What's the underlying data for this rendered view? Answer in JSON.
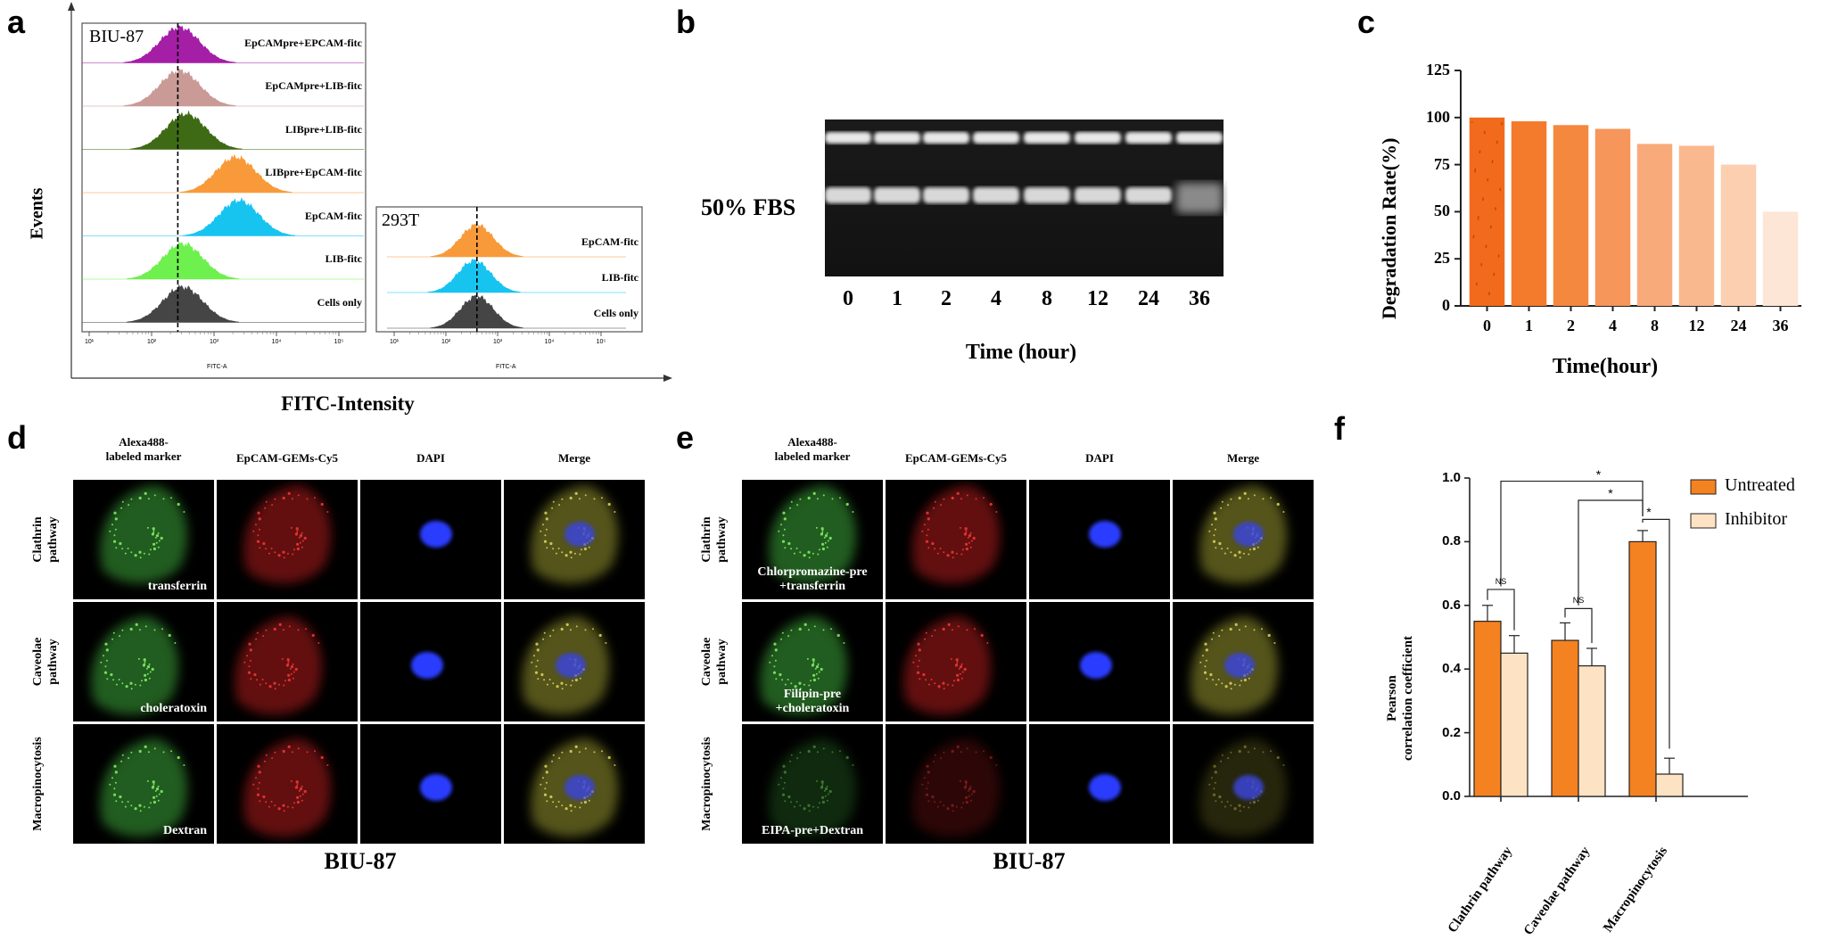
{
  "panels": {
    "a": "a",
    "b": "b",
    "c": "c",
    "d": "d",
    "e": "e",
    "f": "f"
  },
  "panel_a": {
    "y_axis_label": "Events",
    "x_axis_label": "FITC-Intensity",
    "left_sample": "BIU-87",
    "right_sample": "293T",
    "tick_labels": [
      "10¹",
      "10²",
      "10³",
      "10⁴",
      "10⁵"
    ],
    "sub_axis_label": "FITC-A",
    "left_rows": [
      {
        "label": "EpCAMpre+EPCAM-fitc",
        "color": "#a41ea6"
      },
      {
        "label": "EpCAMpre+LIB-fitc",
        "color": "#c99a96"
      },
      {
        "label": "LIBpre+LIB-fitc",
        "color": "#3f6a15"
      },
      {
        "label": "LIBpre+EpCAM-fitc",
        "color": "#f89a3a"
      },
      {
        "label": "EpCAM-fitc",
        "color": "#17c4f0"
      },
      {
        "label": "LIB-fitc",
        "color": "#6ef04f"
      },
      {
        "label": "Cells only",
        "color": "#454545"
      }
    ],
    "right_rows": [
      {
        "label": "EpCAM-fitc",
        "color": "#f89a3a"
      },
      {
        "label": "LIB-fitc",
        "color": "#17c4f0"
      },
      {
        "label": "Cells only",
        "color": "#454545"
      }
    ]
  },
  "panel_b": {
    "row_label": "50% FBS",
    "lanes": [
      "0",
      "1",
      "2",
      "4",
      "8",
      "12",
      "24",
      "36"
    ],
    "x_axis_label": "Time (hour)"
  },
  "panel_c": {
    "chart_data": {
      "type": "bar",
      "categories": [
        "0",
        "1",
        "2",
        "4",
        "8",
        "12",
        "24",
        "36"
      ],
      "values": [
        100,
        98,
        96,
        94,
        86,
        85,
        75,
        50
      ],
      "colors": [
        "#f26a1b",
        "#f47a2c",
        "#f5883f",
        "#f6965a",
        "#f8aa7a",
        "#f9b88d",
        "#fbcfb0",
        "#fde6d6"
      ],
      "xlabel": "Time(hour)",
      "ylabel": "Degradation Rate(%)",
      "ylim": [
        0,
        125
      ],
      "yticks": [
        "0",
        "25",
        "50",
        "75",
        "100",
        "125"
      ]
    }
  },
  "panel_d": {
    "columns": [
      "Alexa488-\nlabeled marker",
      "EpCAM-GEMs-Cy5",
      "DAPI",
      "Merge"
    ],
    "rows": [
      "Clathrin\npathway",
      "Caveolae\npathway",
      "Macropinocytosis"
    ],
    "captions": [
      "transferrin",
      "choleratoxin",
      "Dextran"
    ],
    "sample": "BIU-87"
  },
  "panel_e": {
    "columns": [
      "Alexa488-\nlabeled marker",
      "EpCAM-GEMs-Cy5",
      "DAPI",
      "Merge"
    ],
    "rows": [
      "Clathrin\npathway",
      "Caveolae\npathway",
      "Macropinocytosis"
    ],
    "captions": [
      "Chlorpromazine-pre\n+transferrin",
      "Filipin-pre\n+choleratoxin",
      "EIPA-pre+Dextran"
    ],
    "sample": "BIU-87"
  },
  "panel_f": {
    "chart_data": {
      "type": "bar",
      "categories": [
        "Clathrin pathway",
        "Caveolae pathway",
        "Macropinocytosis"
      ],
      "series": [
        {
          "name": "Untreated",
          "values": [
            0.55,
            0.49,
            0.8
          ],
          "errors": [
            0.05,
            0.055,
            0.035
          ],
          "color": "#f58220"
        },
        {
          "name": "Inhibitor",
          "values": [
            0.45,
            0.41,
            0.07
          ],
          "errors": [
            0.055,
            0.055,
            0.05
          ],
          "color": "#fde3c4"
        }
      ],
      "ylabel": "Pearson\ncorrelation coefficient",
      "ylim": [
        0,
        1.0
      ],
      "yticks": [
        "0.0",
        "0.2",
        "0.4",
        "0.6",
        "0.8",
        "1.0"
      ],
      "annotations": [
        "NS",
        "NS",
        "*",
        "*",
        "*"
      ],
      "legend": "top-right"
    }
  }
}
